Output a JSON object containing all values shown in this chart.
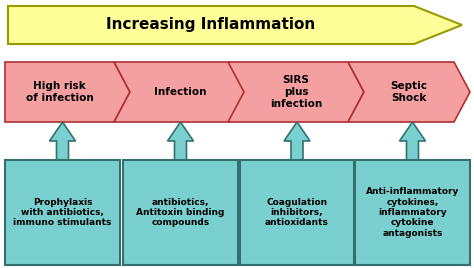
{
  "title": "Increasing Inflammation",
  "title_fontsize": 11,
  "background_color": "#ffffff",
  "chevron_color": "#f4a0a0",
  "chevron_edge_color": "#b03030",
  "top_arrow_color": "#ffff99",
  "top_arrow_edge_color": "#999900",
  "box_color": "#7acfcf",
  "box_edge_color": "#357070",
  "up_arrow_color": "#7acfcf",
  "up_arrow_edge_color": "#357070",
  "chevron_labels": [
    "High risk\nof infection",
    "Infection",
    "SIRS\nplus\ninfection",
    "Septic\nShock"
  ],
  "box_labels": [
    "Prophylaxis\nwith antibiotics,\nimmuno stimulants",
    "antibiotics,\nAntitoxin binding\ncompounds",
    "Coagulation\ninhibitors,\nantioxidants",
    "Anti-inflammatory\ncytokines,\ninflammatory\ncytokine\nantagonists"
  ],
  "label_fontsize": 6.5,
  "chevron_fontsize": 7.5
}
